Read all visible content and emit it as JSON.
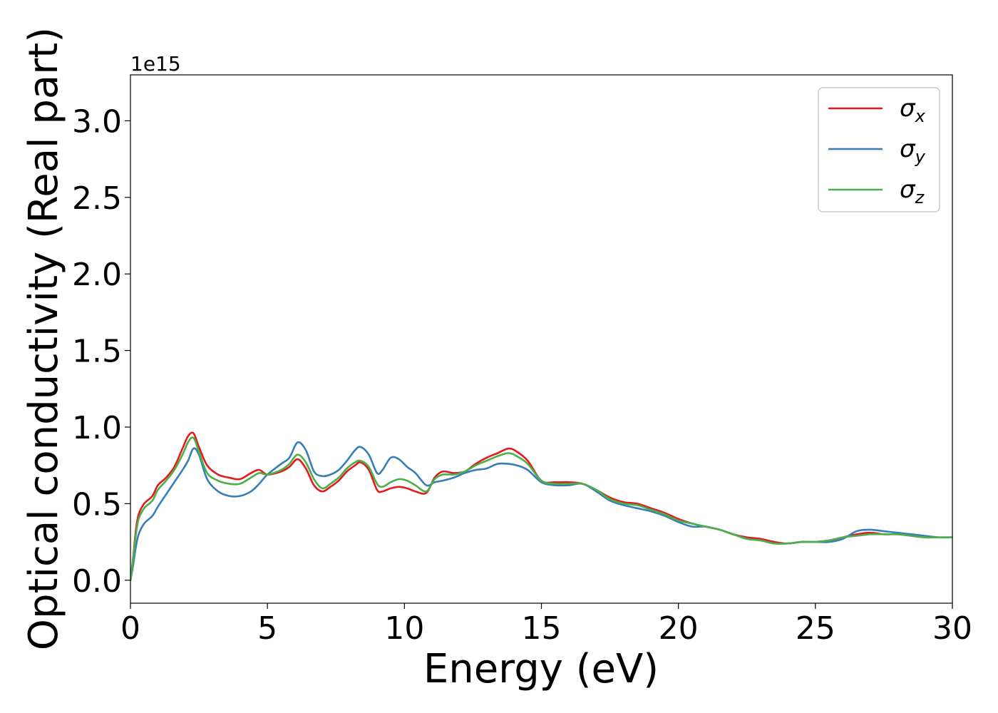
{
  "chart_data": {
    "type": "line",
    "title": "",
    "xlabel": "Energy (eV)",
    "ylabel": "Optical conductivity (Real part)",
    "y_scale_label": "1e15",
    "xlim": [
      0,
      30
    ],
    "ylim": [
      -0.15,
      3.3
    ],
    "x_ticks": [
      0,
      5,
      10,
      15,
      20,
      25,
      30
    ],
    "x_tick_labels": [
      "0",
      "5",
      "10",
      "15",
      "20",
      "25",
      "30"
    ],
    "y_ticks": [
      0.0,
      0.5,
      1.0,
      1.5,
      2.0,
      2.5,
      3.0
    ],
    "y_tick_labels": [
      "0.0",
      "0.5",
      "1.0",
      "1.5",
      "2.0",
      "2.5",
      "3.0"
    ],
    "grid": false,
    "legend_position": "top-right",
    "series": [
      {
        "name": "σx",
        "symbol": "σ",
        "subscript": "x",
        "color": "#e41a1c",
        "x": [
          0,
          0.1,
          0.2,
          0.3,
          0.5,
          0.8,
          1.0,
          1.3,
          1.6,
          1.9,
          2.1,
          2.3,
          2.5,
          2.8,
          3.2,
          3.6,
          4.0,
          4.4,
          4.7,
          5.0,
          5.5,
          5.8,
          6.1,
          6.4,
          6.7,
          7.0,
          7.3,
          7.6,
          7.9,
          8.2,
          8.4,
          8.7,
          9.0,
          9.2,
          9.5,
          9.8,
          10.1,
          10.4,
          10.8,
          11.1,
          11.4,
          11.8,
          12.2,
          12.6,
          13.0,
          13.4,
          13.8,
          14.1,
          14.5,
          15.0,
          15.5,
          16.0,
          16.5,
          17.0,
          17.5,
          18.0,
          18.5,
          19.0,
          19.5,
          20.0,
          20.5,
          21.0,
          21.5,
          22.0,
          22.5,
          23.0,
          23.5,
          24.0,
          24.5,
          25.0,
          25.5,
          26.0,
          26.5,
          27.0,
          27.5,
          28.0,
          28.5,
          29.0,
          29.5,
          30.0
        ],
        "y": [
          0.0,
          0.15,
          0.33,
          0.43,
          0.5,
          0.55,
          0.62,
          0.67,
          0.74,
          0.86,
          0.94,
          0.96,
          0.87,
          0.75,
          0.69,
          0.67,
          0.66,
          0.7,
          0.72,
          0.69,
          0.71,
          0.74,
          0.79,
          0.73,
          0.62,
          0.58,
          0.61,
          0.65,
          0.71,
          0.75,
          0.77,
          0.72,
          0.59,
          0.58,
          0.6,
          0.61,
          0.6,
          0.58,
          0.57,
          0.67,
          0.71,
          0.7,
          0.71,
          0.76,
          0.8,
          0.83,
          0.86,
          0.84,
          0.78,
          0.65,
          0.64,
          0.64,
          0.63,
          0.59,
          0.54,
          0.51,
          0.5,
          0.47,
          0.44,
          0.4,
          0.37,
          0.35,
          0.33,
          0.3,
          0.28,
          0.27,
          0.25,
          0.24,
          0.25,
          0.25,
          0.26,
          0.28,
          0.3,
          0.31,
          0.3,
          0.3,
          0.29,
          0.28,
          0.28,
          0.28
        ]
      },
      {
        "name": "σy",
        "symbol": "σ",
        "subscript": "y",
        "color": "#377eb8",
        "x": [
          0,
          0.1,
          0.2,
          0.3,
          0.5,
          0.8,
          1.0,
          1.3,
          1.6,
          1.9,
          2.1,
          2.3,
          2.5,
          2.8,
          3.2,
          3.6,
          4.0,
          4.4,
          4.7,
          5.0,
          5.5,
          5.8,
          6.1,
          6.4,
          6.7,
          7.0,
          7.3,
          7.6,
          7.9,
          8.2,
          8.4,
          8.7,
          9.0,
          9.2,
          9.5,
          9.8,
          10.1,
          10.4,
          10.8,
          11.1,
          11.4,
          11.8,
          12.2,
          12.6,
          13.0,
          13.4,
          13.8,
          14.1,
          14.5,
          15.0,
          15.5,
          16.0,
          16.5,
          17.0,
          17.5,
          18.0,
          18.5,
          19.0,
          19.5,
          20.0,
          20.5,
          21.0,
          21.5,
          22.0,
          22.5,
          23.0,
          23.5,
          24.0,
          24.5,
          25.0,
          25.5,
          26.0,
          26.5,
          27.0,
          27.5,
          28.0,
          28.5,
          29.0,
          29.5,
          30.0
        ],
        "y": [
          0.0,
          0.1,
          0.22,
          0.3,
          0.37,
          0.42,
          0.48,
          0.56,
          0.64,
          0.72,
          0.78,
          0.86,
          0.82,
          0.66,
          0.58,
          0.55,
          0.55,
          0.58,
          0.63,
          0.69,
          0.76,
          0.8,
          0.9,
          0.85,
          0.71,
          0.68,
          0.69,
          0.72,
          0.78,
          0.85,
          0.87,
          0.82,
          0.7,
          0.72,
          0.8,
          0.79,
          0.74,
          0.7,
          0.62,
          0.64,
          0.65,
          0.67,
          0.7,
          0.72,
          0.73,
          0.76,
          0.76,
          0.75,
          0.72,
          0.64,
          0.62,
          0.62,
          0.63,
          0.58,
          0.52,
          0.49,
          0.47,
          0.45,
          0.42,
          0.38,
          0.35,
          0.35,
          0.33,
          0.3,
          0.27,
          0.26,
          0.24,
          0.24,
          0.25,
          0.25,
          0.25,
          0.27,
          0.32,
          0.33,
          0.32,
          0.31,
          0.3,
          0.29,
          0.28,
          0.28
        ]
      },
      {
        "name": "σz",
        "symbol": "σ",
        "subscript": "z",
        "color": "#4daf4a",
        "x": [
          0,
          0.1,
          0.2,
          0.3,
          0.5,
          0.8,
          1.0,
          1.3,
          1.6,
          1.9,
          2.1,
          2.3,
          2.5,
          2.8,
          3.2,
          3.6,
          4.0,
          4.4,
          4.7,
          5.0,
          5.5,
          5.8,
          6.1,
          6.4,
          6.7,
          7.0,
          7.3,
          7.6,
          7.9,
          8.2,
          8.4,
          8.7,
          9.0,
          9.2,
          9.5,
          9.8,
          10.1,
          10.4,
          10.8,
          11.1,
          11.4,
          11.8,
          12.2,
          12.6,
          13.0,
          13.4,
          13.8,
          14.1,
          14.5,
          15.0,
          15.5,
          16.0,
          16.5,
          17.0,
          17.5,
          18.0,
          18.5,
          19.0,
          19.5,
          20.0,
          20.5,
          21.0,
          21.5,
          22.0,
          22.5,
          23.0,
          23.5,
          24.0,
          24.5,
          25.0,
          25.5,
          26.0,
          26.5,
          27.0,
          27.5,
          28.0,
          28.5,
          29.0,
          29.5,
          30.0
        ],
        "y": [
          0.0,
          0.14,
          0.3,
          0.4,
          0.47,
          0.52,
          0.59,
          0.65,
          0.72,
          0.82,
          0.9,
          0.93,
          0.84,
          0.7,
          0.65,
          0.63,
          0.63,
          0.67,
          0.7,
          0.69,
          0.72,
          0.76,
          0.82,
          0.77,
          0.66,
          0.6,
          0.63,
          0.67,
          0.73,
          0.77,
          0.78,
          0.74,
          0.63,
          0.61,
          0.64,
          0.66,
          0.65,
          0.62,
          0.58,
          0.66,
          0.69,
          0.69,
          0.71,
          0.75,
          0.78,
          0.81,
          0.83,
          0.81,
          0.76,
          0.65,
          0.63,
          0.63,
          0.63,
          0.59,
          0.53,
          0.5,
          0.49,
          0.46,
          0.43,
          0.39,
          0.37,
          0.35,
          0.33,
          0.3,
          0.27,
          0.26,
          0.24,
          0.24,
          0.25,
          0.25,
          0.26,
          0.28,
          0.29,
          0.3,
          0.3,
          0.3,
          0.29,
          0.28,
          0.28,
          0.28
        ]
      }
    ]
  }
}
